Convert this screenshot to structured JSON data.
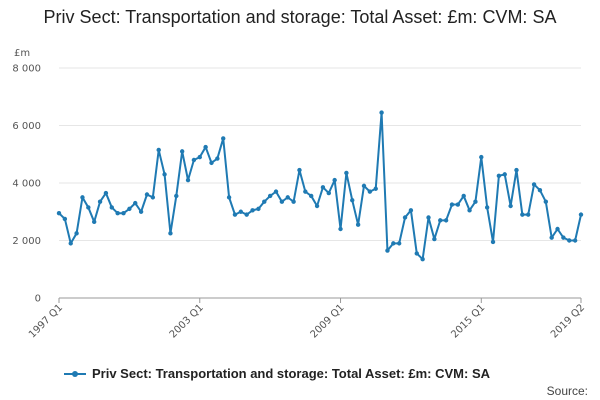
{
  "title": "Priv Sect: Transportation and storage: Total Asset: £m: CVM: SA",
  "source_label": "Source:",
  "colors": {
    "series": "#1f7ab3",
    "grid": "#e6e6e6",
    "axis": "#999999"
  },
  "chart_data": {
    "type": "line",
    "title": "Priv Sect: Transportation and storage: Total Asset: £m: CVM: SA",
    "ylabel": "£m",
    "xlabel": "",
    "ylim": [
      0,
      8000
    ],
    "y_ticks": [
      0,
      2000,
      4000,
      6000,
      8000
    ],
    "y_tick_labels": [
      "0",
      "2 000",
      "4 000",
      "6 000",
      "8 000"
    ],
    "x_tick_labels": [
      "1997 Q1",
      "2003 Q1",
      "2009 Q1",
      "2015 Q1",
      "2019 Q2"
    ],
    "x_tick_indices": [
      0,
      24,
      48,
      72,
      89
    ],
    "grid": "horizontal",
    "legend_position": "bottom",
    "series": [
      {
        "name": "Priv Sect: Transportation and storage: Total Asset: £m: CVM: SA",
        "start_period": "1997 Q1",
        "end_period": "2019 Q2",
        "values": [
          2950,
          2750,
          1900,
          2250,
          3500,
          3150,
          2650,
          3350,
          3650,
          3150,
          2950,
          2950,
          3100,
          3300,
          3000,
          3600,
          3500,
          5150,
          4300,
          2250,
          3550,
          5100,
          4100,
          4800,
          4900,
          5250,
          4700,
          4850,
          5550,
          3500,
          2900,
          3000,
          2900,
          3050,
          3100,
          3350,
          3550,
          3700,
          3350,
          3500,
          3350,
          4450,
          3700,
          3550,
          3200,
          3850,
          3650,
          4100,
          2400,
          4350,
          3400,
          2550,
          3900,
          3700,
          3800,
          6450,
          1650,
          1900,
          1900,
          2800,
          3050,
          1550,
          1350,
          2800,
          2050,
          2700,
          2700,
          3250,
          3250,
          3550,
          3050,
          3350,
          4900,
          3150,
          1950,
          4250,
          4300,
          3200,
          4450,
          2900,
          2900,
          3950,
          3750,
          3350,
          2100,
          2400,
          2100,
          2000,
          2000,
          2900
        ]
      }
    ]
  }
}
